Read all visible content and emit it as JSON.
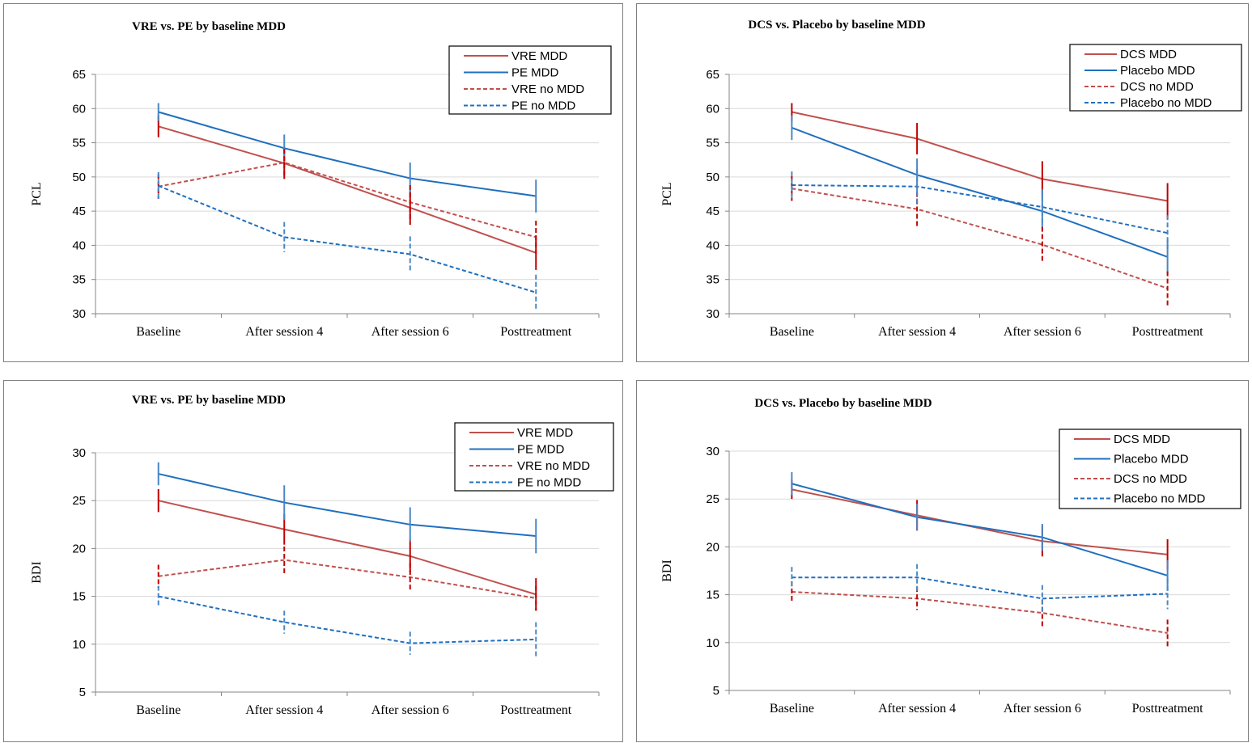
{
  "colors": {
    "red": "#c0504d",
    "blue": "#1f6fbf",
    "errRed": "#c00000",
    "errBlue": "#4a86c5"
  },
  "chart_data": [
    {
      "type": "line",
      "title": "VRE vs. PE by baseline MDD",
      "ylabel": "PCL",
      "xlabel": "",
      "ylim": [
        30,
        65
      ],
      "yticks": [
        30,
        35,
        40,
        45,
        50,
        55,
        60,
        65
      ],
      "grid": true,
      "legend_position": "top-right",
      "categories": [
        "Baseline",
        "After session 4",
        "After session 6",
        "Posttreatment"
      ],
      "series": [
        {
          "name": "VRE MDD",
          "color": "red",
          "dashed": false,
          "values": [
            57.4,
            52.0,
            45.5,
            38.9
          ],
          "err": [
            1.6,
            2.3,
            2.5,
            2.5
          ]
        },
        {
          "name": "PE MDD",
          "color": "blue",
          "dashed": false,
          "values": [
            59.5,
            54.2,
            49.8,
            47.2
          ],
          "err": [
            1.3,
            2.0,
            2.3,
            2.4
          ]
        },
        {
          "name": "VRE no MDD",
          "color": "red",
          "dashed": true,
          "values": [
            48.6,
            52.1,
            46.3,
            41.2
          ],
          "err": [
            1.8,
            2.0,
            2.5,
            2.4
          ]
        },
        {
          "name": "PE no MDD",
          "color": "blue",
          "dashed": true,
          "values": [
            48.7,
            41.2,
            38.7,
            33.1
          ],
          "err": [
            2.0,
            2.2,
            2.6,
            2.6
          ]
        }
      ]
    },
    {
      "type": "line",
      "title": "DCS vs. Placebo by baseline MDD",
      "ylabel": "PCL",
      "xlabel": "",
      "ylim": [
        30,
        65
      ],
      "yticks": [
        30,
        35,
        40,
        45,
        50,
        55,
        60,
        65
      ],
      "grid": true,
      "legend_position": "top-right",
      "categories": [
        "Baseline",
        "After session 4",
        "After session 6",
        "Posttreatment"
      ],
      "series": [
        {
          "name": "DCS MDD",
          "color": "red",
          "dashed": false,
          "values": [
            59.5,
            55.6,
            49.7,
            46.5
          ],
          "err": [
            1.3,
            2.3,
            2.6,
            2.6
          ]
        },
        {
          "name": "Placebo MDD",
          "color": "blue",
          "dashed": false,
          "values": [
            57.2,
            50.3,
            45.0,
            38.3
          ],
          "err": [
            1.8,
            2.4,
            2.6,
            2.5
          ]
        },
        {
          "name": "DCS no MDD",
          "color": "red",
          "dashed": true,
          "values": [
            48.3,
            45.3,
            40.1,
            33.7
          ],
          "err": [
            1.8,
            2.5,
            2.6,
            2.5
          ]
        },
        {
          "name": "Placebo no MDD",
          "color": "blue",
          "dashed": true,
          "values": [
            48.8,
            48.6,
            45.6,
            41.8
          ],
          "err": [
            2.0,
            2.5,
            2.6,
            2.6
          ]
        }
      ]
    },
    {
      "type": "line",
      "title": "VRE vs. PE by baseline MDD",
      "ylabel": "BDI",
      "xlabel": "",
      "ylim": [
        5,
        30
      ],
      "yticks": [
        5,
        10,
        15,
        20,
        25,
        30
      ],
      "grid": true,
      "legend_position": "top-right",
      "categories": [
        "Baseline",
        "After session 4",
        "After session 6",
        "Posttreatment"
      ],
      "series": [
        {
          "name": "VRE MDD",
          "color": "red",
          "dashed": false,
          "values": [
            25.0,
            22.0,
            19.2,
            15.2
          ],
          "err": [
            1.2,
            1.6,
            1.7,
            1.7
          ]
        },
        {
          "name": "PE MDD",
          "color": "blue",
          "dashed": false,
          "values": [
            27.8,
            24.8,
            22.5,
            21.3
          ],
          "err": [
            1.2,
            1.8,
            1.8,
            1.8
          ]
        },
        {
          "name": "VRE no MDD",
          "color": "red",
          "dashed": true,
          "values": [
            17.1,
            18.8,
            17.0,
            14.8
          ],
          "err": [
            1.2,
            1.4,
            1.5,
            1.3
          ]
        },
        {
          "name": "PE no MDD",
          "color": "blue",
          "dashed": true,
          "values": [
            15.0,
            12.3,
            10.1,
            10.5
          ],
          "err": [
            1.1,
            1.2,
            1.2,
            1.8
          ]
        }
      ]
    },
    {
      "type": "line",
      "title": "DCS vs. Placebo by baseline MDD",
      "ylabel": "BDI",
      "xlabel": "",
      "ylim": [
        5,
        30
      ],
      "yticks": [
        5,
        10,
        15,
        20,
        25,
        30
      ],
      "grid": true,
      "legend_position": "top-right",
      "categories": [
        "Baseline",
        "After session 4",
        "After session 6",
        "Posttreatment"
      ],
      "series": [
        {
          "name": "DCS MDD",
          "color": "red",
          "dashed": false,
          "values": [
            26.0,
            23.3,
            20.6,
            19.2
          ],
          "err": [
            1.0,
            1.6,
            1.6,
            1.6
          ]
        },
        {
          "name": "Placebo MDD",
          "color": "blue",
          "dashed": false,
          "values": [
            26.6,
            23.1,
            21.0,
            17.0
          ],
          "err": [
            1.2,
            1.4,
            1.4,
            1.6
          ]
        },
        {
          "name": "DCS no MDD",
          "color": "red",
          "dashed": true,
          "values": [
            15.3,
            14.6,
            13.1,
            11.0
          ],
          "err": [
            1.1,
            1.2,
            1.4,
            1.4
          ]
        },
        {
          "name": "Placebo no MDD",
          "color": "blue",
          "dashed": true,
          "values": [
            16.8,
            16.8,
            14.6,
            15.1
          ],
          "err": [
            1.1,
            1.4,
            1.4,
            1.6
          ]
        }
      ]
    }
  ]
}
